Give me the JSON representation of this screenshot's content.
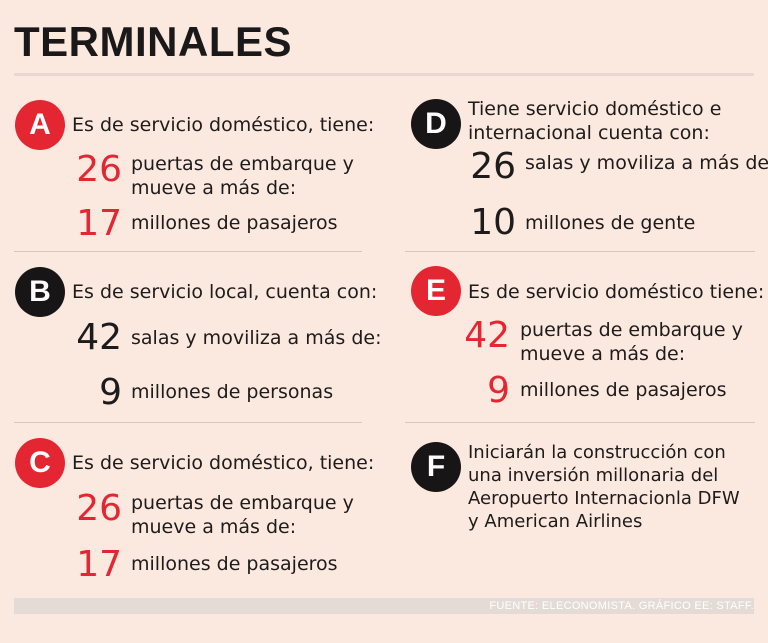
{
  "title": "TERMINALES",
  "colors": {
    "red": "#e32631",
    "black": "#171515",
    "background": "#fbe8df"
  },
  "terminals": {
    "A": {
      "letter": "A",
      "heading": "Es de servicio doméstico, tiene:",
      "stat1": {
        "value": "26",
        "line1": "puertas de embarque y",
        "line2": "mueve a más de:"
      },
      "stat2": {
        "value": "17",
        "text": "millones de pasajeros"
      }
    },
    "B": {
      "letter": "B",
      "heading": "Es de servicio local, cuenta con:",
      "stat1": {
        "value": "42",
        "text": "salas y moviliza a más de:"
      },
      "stat2": {
        "value": "9",
        "text": "millones de personas"
      }
    },
    "C": {
      "letter": "C",
      "heading": "Es de servicio doméstico, tiene:",
      "stat1": {
        "value": "26",
        "line1": "puertas de embarque y",
        "line2": "mueve a más de:"
      },
      "stat2": {
        "value": "17",
        "text": "millones de pasajeros"
      }
    },
    "D": {
      "letter": "D",
      "heading_line1": "Tiene servicio doméstico e",
      "heading_line2": "internacional cuenta con:",
      "stat1": {
        "value": "26",
        "text": "salas y moviliza a más de:"
      },
      "stat2": {
        "value": "10",
        "text": "millones de gente"
      }
    },
    "E": {
      "letter": "E",
      "heading": "Es de servicio doméstico tiene:",
      "stat1": {
        "value": "42",
        "line1": "puertas de embarque y",
        "line2": "mueve a más de:"
      },
      "stat2": {
        "value": "9",
        "text": "millones de pasajeros"
      }
    },
    "F": {
      "letter": "F",
      "lines": [
        "Iniciarán la construcción con",
        "una inversión millonaria del",
        "Aeropuerto Internacionla DFW",
        "y American Airlines"
      ]
    }
  },
  "footer": "FUENTE: ELECONOMISTA. GRÁFICO EE: STAFF."
}
